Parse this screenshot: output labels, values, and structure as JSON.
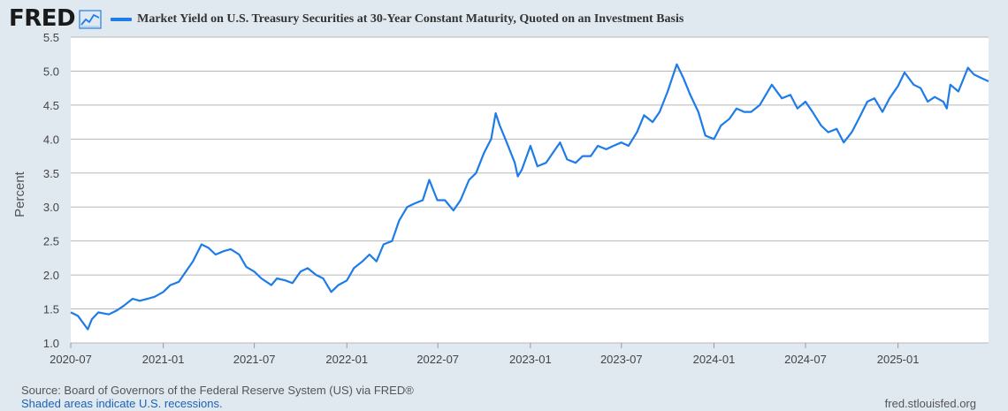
{
  "header": {
    "logo_text": "FRED",
    "logo_icon": "line-chart-icon"
  },
  "footer": {
    "source": "Source: Board of Governors of the Federal Reserve System (US) via FRED®",
    "recessions_note": "Shaded areas indicate U.S. recessions.",
    "site": "fred.stlouisfed.org"
  },
  "colors": {
    "background": "#e1e9f0",
    "plot_background": "#ffffff",
    "series": "#1e7ce8",
    "gridline": "#b7b7b7"
  },
  "chart_data": {
    "type": "line",
    "title": "Market Yield on U.S. Treasury Securities at 30-Year Constant Maturity, Quoted on an Investment Basis",
    "ylabel": "Percent",
    "xlabel": "",
    "ylim": [
      1.0,
      5.5
    ],
    "yticks": [
      "1.0",
      "1.5",
      "2.0",
      "2.5",
      "3.0",
      "3.5",
      "4.0",
      "4.5",
      "5.0",
      "5.5"
    ],
    "xlim": [
      "2020-07-01",
      "2025-06-30"
    ],
    "xticks": [
      {
        "date": "2020-07-01",
        "label": "2020-07"
      },
      {
        "date": "2021-01-01",
        "label": "2021-01"
      },
      {
        "date": "2021-07-01",
        "label": "2021-07"
      },
      {
        "date": "2022-01-01",
        "label": "2022-01"
      },
      {
        "date": "2022-07-01",
        "label": "2022-07"
      },
      {
        "date": "2023-01-01",
        "label": "2023-01"
      },
      {
        "date": "2023-07-01",
        "label": "2023-07"
      },
      {
        "date": "2024-01-01",
        "label": "2024-01"
      },
      {
        "date": "2024-07-01",
        "label": "2024-07"
      },
      {
        "date": "2025-01-01",
        "label": "2025-01"
      }
    ],
    "grid": "horizontal",
    "legend": "top-left",
    "series": [
      {
        "name": "Market Yield on U.S. Treasury Securities at 30-Year Constant Maturity, Quoted on an Investment Basis",
        "points": [
          [
            "2020-07-01",
            1.45
          ],
          [
            "2020-07-15",
            1.4
          ],
          [
            "2020-08-04",
            1.2
          ],
          [
            "2020-08-12",
            1.35
          ],
          [
            "2020-08-25",
            1.45
          ],
          [
            "2020-09-15",
            1.42
          ],
          [
            "2020-10-01",
            1.48
          ],
          [
            "2020-10-15",
            1.55
          ],
          [
            "2020-11-01",
            1.65
          ],
          [
            "2020-11-15",
            1.62
          ],
          [
            "2020-12-01",
            1.65
          ],
          [
            "2020-12-15",
            1.68
          ],
          [
            "2021-01-01",
            1.75
          ],
          [
            "2021-01-15",
            1.85
          ],
          [
            "2021-02-01",
            1.9
          ],
          [
            "2021-02-15",
            2.05
          ],
          [
            "2021-03-01",
            2.2
          ],
          [
            "2021-03-18",
            2.45
          ],
          [
            "2021-04-01",
            2.4
          ],
          [
            "2021-04-15",
            2.3
          ],
          [
            "2021-05-01",
            2.35
          ],
          [
            "2021-05-15",
            2.38
          ],
          [
            "2021-06-01",
            2.3
          ],
          [
            "2021-06-15",
            2.12
          ],
          [
            "2021-07-01",
            2.05
          ],
          [
            "2021-07-15",
            1.95
          ],
          [
            "2021-08-04",
            1.85
          ],
          [
            "2021-08-15",
            1.95
          ],
          [
            "2021-09-01",
            1.92
          ],
          [
            "2021-09-15",
            1.88
          ],
          [
            "2021-10-01",
            2.05
          ],
          [
            "2021-10-15",
            2.1
          ],
          [
            "2021-11-01",
            2.0
          ],
          [
            "2021-11-15",
            1.95
          ],
          [
            "2021-12-01",
            1.75
          ],
          [
            "2021-12-15",
            1.85
          ],
          [
            "2022-01-01",
            1.92
          ],
          [
            "2022-01-15",
            2.1
          ],
          [
            "2022-02-01",
            2.2
          ],
          [
            "2022-02-15",
            2.3
          ],
          [
            "2022-03-01",
            2.2
          ],
          [
            "2022-03-15",
            2.45
          ],
          [
            "2022-04-01",
            2.5
          ],
          [
            "2022-04-15",
            2.8
          ],
          [
            "2022-05-01",
            3.0
          ],
          [
            "2022-05-15",
            3.05
          ],
          [
            "2022-06-01",
            3.1
          ],
          [
            "2022-06-14",
            3.4
          ],
          [
            "2022-06-30",
            3.1
          ],
          [
            "2022-07-15",
            3.1
          ],
          [
            "2022-08-01",
            2.95
          ],
          [
            "2022-08-15",
            3.1
          ],
          [
            "2022-09-01",
            3.4
          ],
          [
            "2022-09-15",
            3.5
          ],
          [
            "2022-10-01",
            3.8
          ],
          [
            "2022-10-15",
            4.0
          ],
          [
            "2022-10-24",
            4.38
          ],
          [
            "2022-11-01",
            4.2
          ],
          [
            "2022-11-15",
            3.95
          ],
          [
            "2022-12-01",
            3.65
          ],
          [
            "2022-12-07",
            3.45
          ],
          [
            "2022-12-15",
            3.55
          ],
          [
            "2023-01-01",
            3.9
          ],
          [
            "2023-01-15",
            3.6
          ],
          [
            "2023-02-01",
            3.65
          ],
          [
            "2023-02-15",
            3.8
          ],
          [
            "2023-03-01",
            3.95
          ],
          [
            "2023-03-15",
            3.7
          ],
          [
            "2023-04-01",
            3.65
          ],
          [
            "2023-04-15",
            3.75
          ],
          [
            "2023-05-01",
            3.75
          ],
          [
            "2023-05-15",
            3.9
          ],
          [
            "2023-06-01",
            3.85
          ],
          [
            "2023-06-15",
            3.9
          ],
          [
            "2023-07-01",
            3.95
          ],
          [
            "2023-07-15",
            3.9
          ],
          [
            "2023-08-01",
            4.1
          ],
          [
            "2023-08-15",
            4.35
          ],
          [
            "2023-09-01",
            4.25
          ],
          [
            "2023-09-15",
            4.4
          ],
          [
            "2023-10-01",
            4.7
          ],
          [
            "2023-10-19",
            5.1
          ],
          [
            "2023-11-01",
            4.9
          ],
          [
            "2023-11-15",
            4.65
          ],
          [
            "2023-12-01",
            4.4
          ],
          [
            "2023-12-15",
            4.05
          ],
          [
            "2024-01-01",
            4.0
          ],
          [
            "2024-01-15",
            4.2
          ],
          [
            "2024-02-01",
            4.3
          ],
          [
            "2024-02-15",
            4.45
          ],
          [
            "2024-03-01",
            4.4
          ],
          [
            "2024-03-15",
            4.4
          ],
          [
            "2024-04-01",
            4.5
          ],
          [
            "2024-04-25",
            4.8
          ],
          [
            "2024-05-15",
            4.6
          ],
          [
            "2024-06-01",
            4.65
          ],
          [
            "2024-06-15",
            4.45
          ],
          [
            "2024-07-01",
            4.55
          ],
          [
            "2024-07-15",
            4.4
          ],
          [
            "2024-08-01",
            4.2
          ],
          [
            "2024-08-15",
            4.1
          ],
          [
            "2024-09-01",
            4.15
          ],
          [
            "2024-09-15",
            3.95
          ],
          [
            "2024-10-01",
            4.1
          ],
          [
            "2024-10-15",
            4.3
          ],
          [
            "2024-11-01",
            4.55
          ],
          [
            "2024-11-15",
            4.6
          ],
          [
            "2024-12-01",
            4.4
          ],
          [
            "2024-12-15",
            4.6
          ],
          [
            "2025-01-01",
            4.78
          ],
          [
            "2025-01-14",
            4.98
          ],
          [
            "2025-02-01",
            4.8
          ],
          [
            "2025-02-15",
            4.75
          ],
          [
            "2025-03-01",
            4.55
          ],
          [
            "2025-03-15",
            4.62
          ],
          [
            "2025-04-01",
            4.55
          ],
          [
            "2025-04-08",
            4.45
          ],
          [
            "2025-04-15",
            4.8
          ],
          [
            "2025-05-01",
            4.7
          ],
          [
            "2025-05-20",
            5.05
          ],
          [
            "2025-06-01",
            4.95
          ],
          [
            "2025-06-15",
            4.9
          ],
          [
            "2025-06-30",
            4.85
          ]
        ]
      }
    ]
  }
}
